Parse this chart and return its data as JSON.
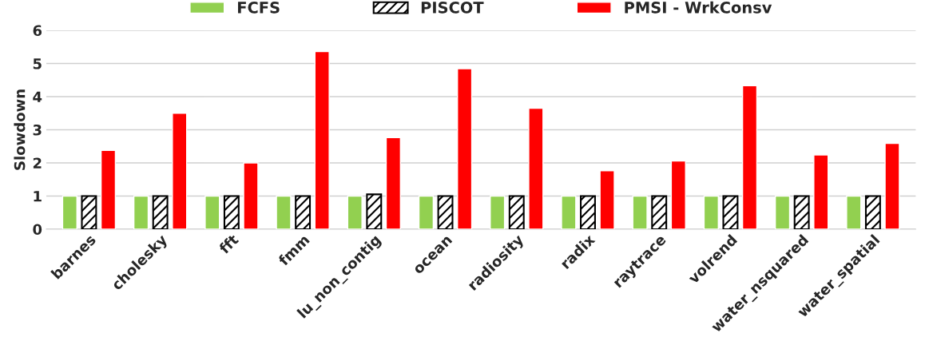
{
  "chart_data": {
    "type": "bar",
    "ylabel": "Slowdown",
    "categories": [
      "barnes",
      "cholesky",
      "fft",
      "fmm",
      "lu_non_contig",
      "ocean",
      "radiosity",
      "radix",
      "raytrace",
      "volrend",
      "water_nsquared",
      "water_spatial"
    ],
    "series": [
      {
        "name": "FCFS",
        "color": "#92d050",
        "values": [
          1,
          1,
          1,
          1,
          1,
          1,
          1,
          1,
          1,
          1,
          1,
          1
        ]
      },
      {
        "name": "PISCOT",
        "color": "#000000",
        "values": [
          1,
          1,
          1,
          1,
          1.05,
          1,
          1,
          1,
          1,
          1,
          1,
          1
        ]
      },
      {
        "name": "PMSI - WrkConsv",
        "color": "#ff0000",
        "values": [
          2.38,
          3.5,
          2.0,
          5.36,
          2.76,
          4.84,
          3.65,
          1.76,
          2.06,
          4.33,
          2.24,
          2.59
        ]
      }
    ],
    "ylim": [
      0,
      6
    ],
    "yticks": [
      0,
      1,
      2,
      3,
      4,
      5,
      6
    ],
    "grid": "y",
    "legend": "top"
  }
}
